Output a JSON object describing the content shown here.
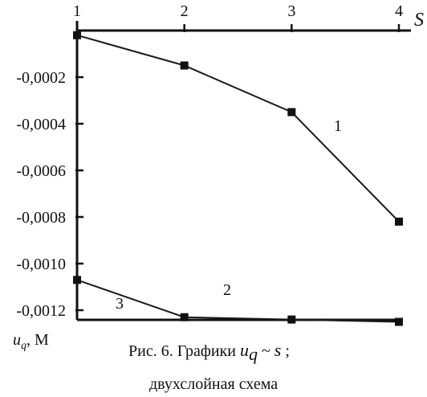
{
  "chart_data": {
    "type": "line",
    "xlabel": "S",
    "ylabel_main": "u",
    "ylabel_sub": "q",
    "ylabel_unit": ", M",
    "x_ticks": [
      "1",
      "2",
      "3",
      "4"
    ],
    "y_ticks": [
      "-0,0002",
      "-0,0004",
      "-0,0006",
      "-0,0008",
      "-0,0010",
      "-0,0012"
    ],
    "y_tick_values": [
      -0.0002,
      -0.0004,
      -0.0006,
      -0.0008,
      -0.001,
      -0.0012
    ],
    "xlim": [
      1,
      4
    ],
    "ylim": [
      -0.00131,
      0.0
    ],
    "series": [
      {
        "name": "1",
        "x": [
          1,
          2,
          3,
          4
        ],
        "y": [
          -2e-05,
          -0.00015,
          -0.00035,
          -0.00082
        ]
      },
      {
        "name": "2",
        "x": [
          1,
          2,
          3,
          4
        ],
        "y": [
          -0.00107,
          -0.00123,
          -0.00124,
          -0.00125
        ]
      }
    ],
    "annotations": [
      "1",
      "2",
      "3"
    ],
    "grid": false,
    "marker": "square",
    "line_color": "#1a1a1a"
  },
  "caption": {
    "line1_prefix": "Рис. 6. Графики ",
    "line1_u": "u",
    "line1_q": "q",
    "line1_tilde": " ~ ",
    "line1_s": "s",
    "line1_suffix": " ;",
    "line2": "двухслойная схема"
  }
}
